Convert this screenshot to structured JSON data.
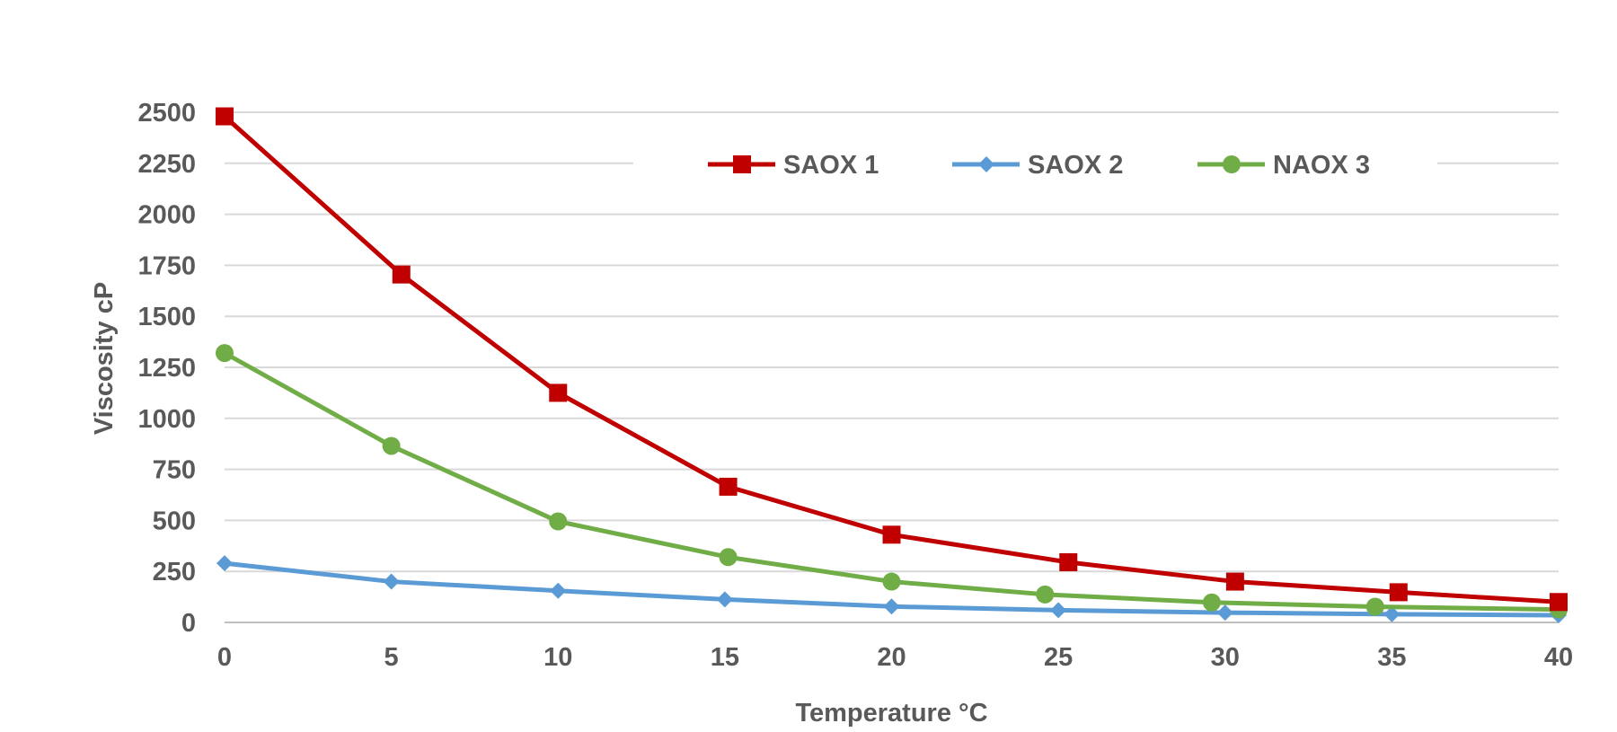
{
  "chart_data": {
    "type": "line",
    "title": "",
    "xlabel": "Temperature °C",
    "ylabel": "Viscosity cP",
    "xlim": [
      0,
      40
    ],
    "ylim": [
      0,
      2500
    ],
    "x_ticks": [
      "0",
      "5",
      "10",
      "15",
      "20",
      "25",
      "30",
      "35",
      "40"
    ],
    "y_ticks": [
      "0",
      "250",
      "500",
      "750",
      "1000",
      "1250",
      "1500",
      "1750",
      "2000",
      "2250",
      "2500"
    ],
    "grid": "horizontal",
    "legend_position": "top-center",
    "series": [
      {
        "name": "SAOX 1",
        "color": "#c00000",
        "marker": "square",
        "points": [
          [
            0,
            2480
          ],
          [
            5.3,
            1705
          ],
          [
            10,
            1125
          ],
          [
            15.1,
            665
          ],
          [
            20,
            430
          ],
          [
            25.3,
            295
          ],
          [
            30.3,
            200
          ],
          [
            35.2,
            148
          ],
          [
            40,
            100
          ]
        ]
      },
      {
        "name": "SAOX 2",
        "color": "#5b9bd5",
        "marker": "diamond",
        "points": [
          [
            0,
            290
          ],
          [
            5,
            200
          ],
          [
            10,
            155
          ],
          [
            15,
            113
          ],
          [
            20,
            78
          ],
          [
            25,
            60
          ],
          [
            30,
            48
          ],
          [
            35,
            40
          ],
          [
            40,
            35
          ]
        ]
      },
      {
        "name": "NAOX 3",
        "color": "#70ad47",
        "marker": "circle",
        "points": [
          [
            0,
            1320
          ],
          [
            5,
            865
          ],
          [
            10,
            495
          ],
          [
            15.1,
            320
          ],
          [
            20,
            200
          ],
          [
            24.6,
            137
          ],
          [
            29.6,
            98
          ],
          [
            34.5,
            77
          ],
          [
            40,
            63
          ]
        ]
      }
    ]
  }
}
